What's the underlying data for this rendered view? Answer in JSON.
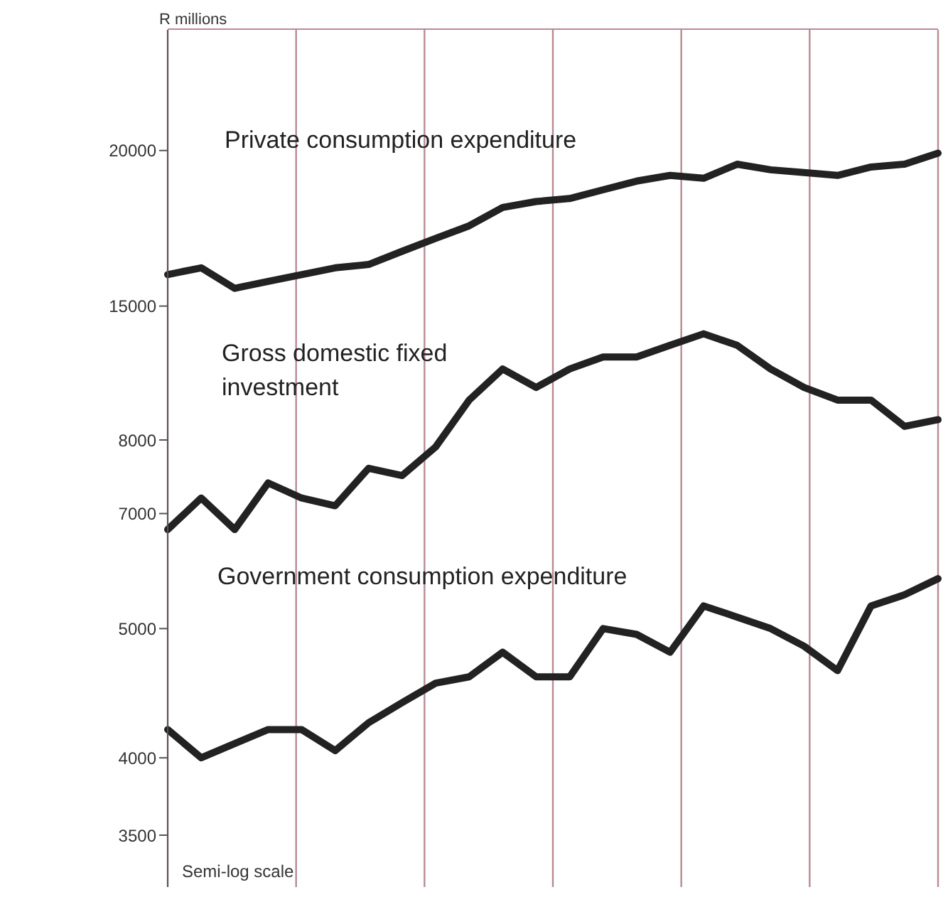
{
  "chart_data": [
    {
      "type": "line",
      "ylabel": "R millions",
      "categories": [
        null,
        null,
        null,
        null,
        null,
        null,
        null,
        null,
        null,
        null,
        null,
        null,
        null,
        null,
        null,
        null,
        null,
        null,
        null,
        null,
        null,
        null,
        null,
        null
      ],
      "ylim": [
        14700,
        25000
      ],
      "yticks": [
        15000,
        20000
      ],
      "log": true,
      "grid": "x",
      "tick_labels": "y",
      "marker": "none",
      "line_style": "solid",
      "series": [
        {
          "name": "Private consumption expenditure",
          "color": "#222222",
          "values": [
            15900,
            16100,
            15500,
            15700,
            15900,
            16100,
            16200,
            16600,
            17000,
            17400,
            18000,
            18200,
            18300,
            18600,
            18900,
            19100,
            19000,
            19500,
            19300,
            19200,
            19100,
            19400,
            19500,
            19900
          ]
        }
      ]
    },
    {
      "type": "line",
      "categories": [
        null,
        null,
        null,
        null,
        null,
        null,
        null,
        null,
        null,
        null,
        null,
        null,
        null,
        null,
        null,
        null,
        null,
        null,
        null,
        null,
        null,
        null,
        null,
        null
      ],
      "ylim": [
        6400,
        10000
      ],
      "yticks": [
        7000,
        8000
      ],
      "log": true,
      "grid": "x",
      "tick_labels": "y",
      "marker": "none",
      "line_style": "solid",
      "series": [
        {
          "name": "Gross domestic fixed investment",
          "color": "#222222",
          "values": [
            6800,
            7200,
            6800,
            7400,
            7200,
            7100,
            7600,
            7500,
            7900,
            8600,
            9100,
            8800,
            9100,
            9300,
            9300,
            9500,
            9700,
            9500,
            9100,
            8800,
            8600,
            8600,
            8200,
            8300
          ]
        }
      ]
    },
    {
      "type": "line",
      "annotations": [
        "Semi-log scale"
      ],
      "categories": [
        null,
        null,
        null,
        null,
        null,
        null,
        null,
        null,
        null,
        null,
        null,
        null,
        null,
        null,
        null,
        null,
        null,
        null,
        null,
        null,
        null,
        null,
        null,
        null
      ],
      "ylim": [
        3200,
        5600
      ],
      "yticks": [
        3500,
        4000,
        5000
      ],
      "log": true,
      "grid": "x",
      "tick_labels": "y",
      "marker": "none",
      "line_style": "solid",
      "series": [
        {
          "name": "Government consumption expenditure",
          "color": "#222222",
          "values": [
            4200,
            4000,
            4100,
            4200,
            4200,
            4050,
            4250,
            4400,
            4550,
            4600,
            4800,
            4600,
            4600,
            5000,
            4950,
            4800,
            5200,
            5100,
            5000,
            4850,
            4650,
            5200,
            5300,
            5450
          ]
        }
      ]
    }
  ]
}
